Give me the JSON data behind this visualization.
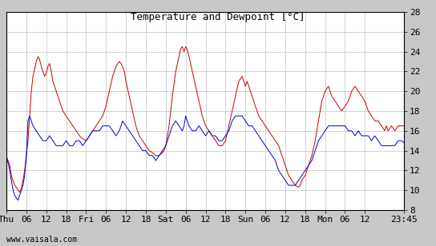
{
  "title": "Temperature and Dewpoint [°C]",
  "ylim": [
    8,
    28
  ],
  "yticks": [
    8,
    10,
    12,
    14,
    16,
    18,
    20,
    22,
    24,
    26,
    28
  ],
  "xtick_labels": [
    "Thu",
    "06",
    "12",
    "18",
    "Fri",
    "06",
    "12",
    "18",
    "Sat",
    "06",
    "12",
    "18",
    "Sun",
    "06",
    "12",
    "18",
    "Mon",
    "06",
    "12",
    "23:45"
  ],
  "xtick_positions": [
    0,
    6,
    12,
    18,
    24,
    30,
    36,
    42,
    48,
    54,
    60,
    66,
    72,
    78,
    84,
    90,
    96,
    102,
    108,
    119.75
  ],
  "total_hours": 119.75,
  "watermark": "www.vaisala.com",
  "plot_bg_color": "#ffffff",
  "outer_bg_color": "#c8c8c8",
  "grid_color": "#c0c0c0",
  "temp_color": "#cc0000",
  "dewp_color": "#0000cc",
  "title_fontsize": 9,
  "tick_fontsize": 8,
  "watermark_fontsize": 7,
  "temp_data": [
    [
      0,
      13.5
    ],
    [
      0.25,
      13.2
    ],
    [
      0.5,
      13.0
    ],
    [
      1,
      12.5
    ],
    [
      1.5,
      11.5
    ],
    [
      2,
      11.0
    ],
    [
      2.5,
      10.5
    ],
    [
      3,
      10.3
    ],
    [
      3.5,
      10.0
    ],
    [
      4,
      9.8
    ],
    [
      4.5,
      10.2
    ],
    [
      5,
      11.0
    ],
    [
      5.5,
      12.0
    ],
    [
      6,
      13.5
    ],
    [
      6.5,
      15.0
    ],
    [
      7,
      17.5
    ],
    [
      7.5,
      20.0
    ],
    [
      8,
      21.5
    ],
    [
      9,
      23.0
    ],
    [
      9.5,
      23.5
    ],
    [
      10,
      23.2
    ],
    [
      10.5,
      22.5
    ],
    [
      11,
      22.0
    ],
    [
      11.5,
      21.5
    ],
    [
      12,
      21.8
    ],
    [
      12.5,
      22.5
    ],
    [
      13,
      22.8
    ],
    [
      13.5,
      22.0
    ],
    [
      14,
      21.0
    ],
    [
      15,
      20.0
    ],
    [
      16,
      19.0
    ],
    [
      17,
      18.0
    ],
    [
      18,
      17.5
    ],
    [
      19,
      17.0
    ],
    [
      20,
      16.5
    ],
    [
      21,
      16.0
    ],
    [
      22,
      15.5
    ],
    [
      23,
      15.2
    ],
    [
      24,
      15.0
    ],
    [
      24.5,
      15.2
    ],
    [
      25,
      15.5
    ],
    [
      26,
      16.0
    ],
    [
      27,
      16.5
    ],
    [
      28,
      17.0
    ],
    [
      29,
      17.5
    ],
    [
      30,
      18.5
    ],
    [
      31,
      20.0
    ],
    [
      32,
      21.5
    ],
    [
      33,
      22.5
    ],
    [
      34,
      23.0
    ],
    [
      34.5,
      22.8
    ],
    [
      35,
      22.5
    ],
    [
      35.5,
      22.0
    ],
    [
      36,
      21.0
    ],
    [
      37,
      19.5
    ],
    [
      38,
      18.0
    ],
    [
      39,
      16.5
    ],
    [
      40,
      15.5
    ],
    [
      41,
      15.0
    ],
    [
      42,
      14.5
    ],
    [
      43,
      14.0
    ],
    [
      44,
      13.8
    ],
    [
      45,
      13.5
    ],
    [
      46,
      13.5
    ],
    [
      47,
      13.8
    ],
    [
      47.5,
      14.0
    ],
    [
      48,
      14.5
    ],
    [
      49,
      16.5
    ],
    [
      50,
      19.5
    ],
    [
      51,
      22.0
    ],
    [
      52,
      23.5
    ],
    [
      52.5,
      24.3
    ],
    [
      53,
      24.5
    ],
    [
      53.5,
      24.0
    ],
    [
      54,
      24.5
    ],
    [
      54.5,
      24.2
    ],
    [
      55,
      23.5
    ],
    [
      56,
      22.0
    ],
    [
      57,
      20.5
    ],
    [
      58,
      19.0
    ],
    [
      59,
      17.5
    ],
    [
      60,
      16.5
    ],
    [
      61,
      16.0
    ],
    [
      62,
      15.5
    ],
    [
      63,
      15.0
    ],
    [
      64,
      14.5
    ],
    [
      65,
      14.5
    ],
    [
      66,
      15.0
    ],
    [
      67,
      16.5
    ],
    [
      68,
      18.0
    ],
    [
      69,
      19.5
    ],
    [
      70,
      21.0
    ],
    [
      71,
      21.5
    ],
    [
      71.5,
      21.0
    ],
    [
      72,
      20.5
    ],
    [
      72.5,
      21.0
    ],
    [
      73,
      20.5
    ],
    [
      74,
      19.5
    ],
    [
      75,
      18.5
    ],
    [
      76,
      17.5
    ],
    [
      77,
      17.0
    ],
    [
      78,
      16.5
    ],
    [
      79,
      16.0
    ],
    [
      80,
      15.5
    ],
    [
      81,
      15.0
    ],
    [
      82,
      14.5
    ],
    [
      83,
      13.5
    ],
    [
      84,
      12.5
    ],
    [
      85,
      11.5
    ],
    [
      86,
      11.0
    ],
    [
      87,
      10.5
    ],
    [
      88,
      10.3
    ],
    [
      88.5,
      10.5
    ],
    [
      89,
      11.0
    ],
    [
      90,
      11.5
    ],
    [
      91,
      12.5
    ],
    [
      92,
      13.5
    ],
    [
      93,
      15.0
    ],
    [
      94,
      17.0
    ],
    [
      95,
      19.0
    ],
    [
      96,
      20.0
    ],
    [
      97,
      20.5
    ],
    [
      97.5,
      20.0
    ],
    [
      98,
      19.5
    ],
    [
      99,
      19.0
    ],
    [
      100,
      18.5
    ],
    [
      101,
      18.0
    ],
    [
      102,
      18.5
    ],
    [
      103,
      19.0
    ],
    [
      104,
      20.0
    ],
    [
      105,
      20.5
    ],
    [
      106,
      20.0
    ],
    [
      107,
      19.5
    ],
    [
      108,
      19.0
    ],
    [
      108.5,
      18.5
    ],
    [
      109,
      18.0
    ],
    [
      110,
      17.5
    ],
    [
      111,
      17.0
    ],
    [
      112,
      17.0
    ],
    [
      113,
      16.5
    ],
    [
      114,
      16.0
    ],
    [
      114.5,
      16.5
    ],
    [
      115,
      16.0
    ],
    [
      116,
      16.5
    ],
    [
      117,
      16.0
    ],
    [
      118,
      16.5
    ],
    [
      119,
      16.5
    ],
    [
      119.75,
      16.5
    ]
  ],
  "dewp_data": [
    [
      0,
      13.2
    ],
    [
      0.5,
      12.8
    ],
    [
      1,
      12.0
    ],
    [
      1.5,
      11.0
    ],
    [
      2,
      10.0
    ],
    [
      2.5,
      9.5
    ],
    [
      3,
      9.2
    ],
    [
      3.5,
      9.0
    ],
    [
      4,
      9.5
    ],
    [
      4.5,
      10.0
    ],
    [
      5,
      10.5
    ],
    [
      5.5,
      11.5
    ],
    [
      6,
      13.5
    ],
    [
      6.5,
      17.0
    ],
    [
      7,
      17.5
    ],
    [
      7.5,
      17.0
    ],
    [
      8,
      16.5
    ],
    [
      9,
      16.0
    ],
    [
      10,
      15.5
    ],
    [
      11,
      15.0
    ],
    [
      12,
      15.0
    ],
    [
      13,
      15.5
    ],
    [
      14,
      15.0
    ],
    [
      15,
      14.5
    ],
    [
      16,
      14.5
    ],
    [
      17,
      14.5
    ],
    [
      18,
      15.0
    ],
    [
      19,
      14.5
    ],
    [
      20,
      14.5
    ],
    [
      21,
      15.0
    ],
    [
      22,
      15.0
    ],
    [
      23,
      14.5
    ],
    [
      24,
      15.0
    ],
    [
      25,
      15.5
    ],
    [
      26,
      16.0
    ],
    [
      27,
      16.0
    ],
    [
      28,
      16.0
    ],
    [
      29,
      16.5
    ],
    [
      30,
      16.5
    ],
    [
      31,
      16.5
    ],
    [
      32,
      16.0
    ],
    [
      33,
      15.5
    ],
    [
      34,
      16.0
    ],
    [
      35,
      17.0
    ],
    [
      36,
      16.5
    ],
    [
      37,
      16.0
    ],
    [
      38,
      15.5
    ],
    [
      39,
      15.0
    ],
    [
      40,
      14.5
    ],
    [
      41,
      14.0
    ],
    [
      42,
      14.0
    ],
    [
      43,
      13.5
    ],
    [
      44,
      13.5
    ],
    [
      45,
      13.0
    ],
    [
      46,
      13.5
    ],
    [
      47,
      14.0
    ],
    [
      48,
      14.5
    ],
    [
      49,
      15.5
    ],
    [
      50,
      16.5
    ],
    [
      51,
      17.0
    ],
    [
      52,
      16.5
    ],
    [
      53,
      16.0
    ],
    [
      53.5,
      16.5
    ],
    [
      54,
      17.5
    ],
    [
      54.5,
      17.0
    ],
    [
      55,
      16.5
    ],
    [
      56,
      16.0
    ],
    [
      57,
      16.0
    ],
    [
      58,
      16.5
    ],
    [
      59,
      16.0
    ],
    [
      60,
      15.5
    ],
    [
      61,
      16.0
    ],
    [
      62,
      15.5
    ],
    [
      63,
      15.5
    ],
    [
      64,
      15.0
    ],
    [
      65,
      15.0
    ],
    [
      66,
      15.5
    ],
    [
      67,
      16.0
    ],
    [
      68,
      17.0
    ],
    [
      69,
      17.5
    ],
    [
      70,
      17.5
    ],
    [
      71,
      17.5
    ],
    [
      72,
      17.0
    ],
    [
      73,
      16.5
    ],
    [
      74,
      16.5
    ],
    [
      75,
      16.0
    ],
    [
      76,
      15.5
    ],
    [
      77,
      15.0
    ],
    [
      78,
      14.5
    ],
    [
      79,
      14.0
    ],
    [
      80,
      13.5
    ],
    [
      81,
      13.0
    ],
    [
      82,
      12.0
    ],
    [
      83,
      11.5
    ],
    [
      84,
      11.0
    ],
    [
      85,
      10.5
    ],
    [
      86,
      10.5
    ],
    [
      87,
      10.5
    ],
    [
      88,
      11.0
    ],
    [
      89,
      11.5
    ],
    [
      90,
      12.0
    ],
    [
      91,
      12.5
    ],
    [
      92,
      13.0
    ],
    [
      93,
      14.0
    ],
    [
      94,
      15.0
    ],
    [
      95,
      15.5
    ],
    [
      96,
      16.0
    ],
    [
      97,
      16.5
    ],
    [
      98,
      16.5
    ],
    [
      99,
      16.5
    ],
    [
      100,
      16.5
    ],
    [
      101,
      16.5
    ],
    [
      102,
      16.5
    ],
    [
      103,
      16.0
    ],
    [
      104,
      16.0
    ],
    [
      105,
      15.5
    ],
    [
      106,
      16.0
    ],
    [
      107,
      15.5
    ],
    [
      108,
      15.5
    ],
    [
      109,
      15.5
    ],
    [
      110,
      15.0
    ],
    [
      111,
      15.5
    ],
    [
      112,
      15.0
    ],
    [
      113,
      14.5
    ],
    [
      114,
      14.5
    ],
    [
      115,
      14.5
    ],
    [
      116,
      14.5
    ],
    [
      117,
      14.5
    ],
    [
      118,
      15.0
    ],
    [
      119,
      15.0
    ],
    [
      119.75,
      14.8
    ]
  ]
}
